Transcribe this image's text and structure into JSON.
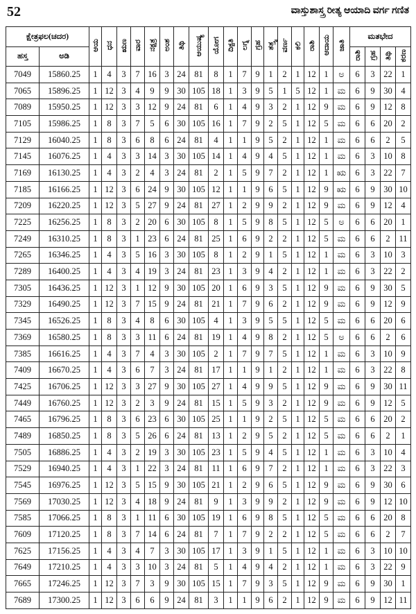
{
  "header": {
    "page_number": "52",
    "title": "ವಾಸ್ತುಶಾಸ್ತ್ರ ರೀತ್ಯ ಆಯಾದಿ ವರ್ಗ ಗಣಿತ"
  },
  "table": {
    "group_header": "ಕ್ಷೇತ್ರಫಲ(ಚದರ)",
    "group_columns": [
      "ಹಸ್ತ",
      "ಅಡಿ"
    ],
    "columns": [
      "ಆಯ",
      "ಧನ",
      "ಋಣ",
      "ವಾರ",
      "ನಕ್ಷತ್ರ",
      "ಅಂಶ",
      "ತಿಥಿ",
      "ಆಯುಷ್ಯ",
      "ಯೋಗ",
      "ದಿಕ್ಪತಿ",
      "ಲಗ್ನ",
      "ಗ್ರಹ",
      "ತತ್ತ್ವ",
      "ವರ್ಣ",
      "ಕಲಿ",
      "ರಾಶಿ",
      "ಆದಾಯ",
      "ಜಾತಿ"
    ],
    "variant_header": "ಮತಭೇದ",
    "variant_columns": [
      "ರಾಶಿ",
      "ಗ್ರಹ",
      "ತಿಥಿ",
      "ಕರಣ"
    ],
    "rows": [
      [
        7049,
        15860.25,
        1,
        4,
        3,
        7,
        16,
        3,
        24,
        81,
        8,
        1,
        7,
        9,
        1,
        2,
        1,
        12,
        1,
        "ಅ",
        6,
        3,
        22,
        1
      ],
      [
        7065,
        15896.25,
        1,
        12,
        3,
        4,
        9,
        9,
        30,
        105,
        18,
        1,
        3,
        9,
        5,
        1,
        5,
        12,
        1,
        "ಮ",
        6,
        9,
        30,
        4
      ],
      [
        7089,
        15950.25,
        1,
        12,
        3,
        3,
        12,
        9,
        24,
        81,
        6,
        1,
        4,
        9,
        3,
        2,
        1,
        12,
        9,
        "ಮ",
        6,
        9,
        12,
        8
      ],
      [
        7105,
        15986.25,
        1,
        8,
        3,
        7,
        5,
        6,
        30,
        105,
        16,
        1,
        7,
        9,
        2,
        5,
        1,
        12,
        5,
        "ಮ",
        6,
        6,
        20,
        2
      ],
      [
        7129,
        16040.25,
        1,
        8,
        3,
        6,
        8,
        6,
        24,
        81,
        4,
        1,
        1,
        9,
        5,
        2,
        1,
        12,
        1,
        "ಮ",
        6,
        6,
        2,
        5
      ],
      [
        7145,
        16076.25,
        1,
        4,
        3,
        3,
        14,
        3,
        30,
        105,
        14,
        1,
        4,
        9,
        4,
        5,
        1,
        12,
        1,
        "ಮ",
        6,
        3,
        10,
        8
      ],
      [
        7169,
        16130.25,
        1,
        4,
        3,
        2,
        4,
        3,
        24,
        81,
        2,
        1,
        5,
        9,
        7,
        2,
        1,
        12,
        1,
        "ಋ",
        6,
        3,
        22,
        7
      ],
      [
        7185,
        16166.25,
        1,
        12,
        3,
        6,
        24,
        9,
        30,
        105,
        12,
        1,
        1,
        9,
        6,
        5,
        1,
        12,
        9,
        "ಋ",
        6,
        9,
        30,
        10
      ],
      [
        7209,
        16220.25,
        1,
        12,
        3,
        5,
        27,
        9,
        24,
        81,
        27,
        1,
        2,
        9,
        9,
        2,
        1,
        12,
        9,
        "ಮ",
        6,
        9,
        12,
        4
      ],
      [
        7225,
        16256.25,
        1,
        8,
        3,
        2,
        20,
        6,
        30,
        105,
        8,
        1,
        5,
        9,
        8,
        5,
        1,
        12,
        5,
        "ಅ",
        6,
        6,
        20,
        1
      ],
      [
        7249,
        16310.25,
        1,
        8,
        3,
        1,
        23,
        6,
        24,
        81,
        25,
        1,
        6,
        9,
        2,
        2,
        1,
        12,
        5,
        "ಮ",
        6,
        6,
        2,
        11
      ],
      [
        7265,
        16346.25,
        1,
        4,
        3,
        5,
        16,
        3,
        30,
        105,
        8,
        1,
        2,
        9,
        1,
        5,
        1,
        12,
        1,
        "ಮ",
        6,
        3,
        10,
        3
      ],
      [
        7289,
        16400.25,
        1,
        4,
        3,
        4,
        19,
        3,
        24,
        81,
        23,
        1,
        3,
        9,
        4,
        2,
        1,
        12,
        1,
        "ಮ",
        6,
        3,
        22,
        2
      ],
      [
        7305,
        16436.25,
        1,
        12,
        3,
        1,
        12,
        9,
        30,
        105,
        20,
        1,
        6,
        9,
        3,
        5,
        1,
        12,
        9,
        "ಮ",
        6,
        9,
        30,
        5
      ],
      [
        7329,
        16490.25,
        1,
        12,
        3,
        7,
        15,
        9,
        24,
        81,
        21,
        1,
        7,
        9,
        6,
        2,
        1,
        12,
        9,
        "ಮ",
        6,
        9,
        12,
        9
      ],
      [
        7345,
        16526.25,
        1,
        8,
        3,
        4,
        8,
        6,
        30,
        105,
        4,
        1,
        3,
        9,
        5,
        5,
        1,
        12,
        5,
        "ಮ",
        6,
        6,
        20,
        6
      ],
      [
        7369,
        16580.25,
        1,
        8,
        3,
        3,
        11,
        6,
        24,
        81,
        19,
        1,
        4,
        9,
        8,
        2,
        1,
        12,
        5,
        "ಅ",
        6,
        6,
        2,
        6
      ],
      [
        7385,
        16616.25,
        1,
        4,
        3,
        7,
        4,
        3,
        30,
        105,
        2,
        1,
        7,
        9,
        7,
        5,
        1,
        12,
        1,
        "ಮ",
        6,
        3,
        10,
        9
      ],
      [
        7409,
        16670.25,
        1,
        4,
        3,
        6,
        7,
        3,
        24,
        81,
        17,
        1,
        1,
        9,
        1,
        2,
        1,
        12,
        1,
        "ಮ",
        6,
        3,
        22,
        8
      ],
      [
        7425,
        16706.25,
        1,
        12,
        3,
        3,
        27,
        9,
        30,
        105,
        27,
        1,
        4,
        9,
        9,
        5,
        1,
        12,
        9,
        "ಮ",
        6,
        9,
        30,
        11
      ],
      [
        7449,
        16760.25,
        1,
        12,
        3,
        2,
        3,
        9,
        24,
        81,
        15,
        1,
        5,
        9,
        3,
        2,
        1,
        12,
        9,
        "ಮ",
        6,
        9,
        12,
        5
      ],
      [
        7465,
        16796.25,
        1,
        8,
        3,
        6,
        23,
        6,
        30,
        105,
        25,
        1,
        1,
        9,
        2,
        5,
        1,
        12,
        5,
        "ಮ",
        6,
        6,
        20,
        2
      ],
      [
        7489,
        16850.25,
        1,
        8,
        3,
        5,
        26,
        6,
        24,
        81,
        13,
        1,
        2,
        9,
        5,
        2,
        1,
        12,
        5,
        "ಮ",
        6,
        6,
        2,
        1
      ],
      [
        7505,
        16886.25,
        1,
        4,
        3,
        2,
        19,
        3,
        30,
        105,
        23,
        1,
        5,
        9,
        4,
        5,
        1,
        12,
        1,
        "ಮ",
        6,
        3,
        10,
        4
      ],
      [
        7529,
        16940.25,
        1,
        4,
        3,
        1,
        22,
        3,
        24,
        81,
        11,
        1,
        6,
        9,
        7,
        2,
        1,
        12,
        1,
        "ಮ",
        6,
        3,
        22,
        3
      ],
      [
        7545,
        16976.25,
        1,
        12,
        3,
        5,
        15,
        9,
        30,
        105,
        21,
        1,
        2,
        9,
        6,
        5,
        1,
        12,
        9,
        "ಮ",
        6,
        9,
        30,
        6
      ],
      [
        7569,
        17030.25,
        1,
        12,
        3,
        4,
        18,
        9,
        24,
        81,
        9,
        1,
        3,
        9,
        9,
        2,
        1,
        12,
        9,
        "ಮ",
        6,
        9,
        12,
        10
      ],
      [
        7585,
        17066.25,
        1,
        8,
        3,
        1,
        11,
        6,
        30,
        105,
        19,
        1,
        6,
        9,
        8,
        5,
        1,
        12,
        5,
        "ಮ",
        6,
        6,
        20,
        8
      ],
      [
        7609,
        17120.25,
        1,
        8,
        3,
        7,
        14,
        6,
        24,
        81,
        7,
        1,
        7,
        9,
        2,
        2,
        1,
        12,
        5,
        "ಮ",
        6,
        6,
        2,
        7
      ],
      [
        7625,
        17156.25,
        1,
        4,
        3,
        4,
        7,
        3,
        30,
        105,
        17,
        1,
        3,
        9,
        1,
        5,
        1,
        12,
        1,
        "ಮ",
        6,
        3,
        10,
        10
      ],
      [
        7649,
        17210.25,
        1,
        4,
        3,
        3,
        10,
        3,
        24,
        81,
        5,
        1,
        4,
        9,
        4,
        2,
        1,
        12,
        1,
        "ಮ",
        6,
        3,
        22,
        9
      ],
      [
        7665,
        17246.25,
        1,
        12,
        3,
        7,
        3,
        9,
        30,
        105,
        15,
        1,
        7,
        9,
        3,
        5,
        1,
        12,
        9,
        "ಮ",
        6,
        9,
        30,
        1
      ],
      [
        7689,
        17300.25,
        1,
        12,
        3,
        6,
        6,
        9,
        24,
        81,
        3,
        1,
        1,
        9,
        6,
        2,
        1,
        12,
        9,
        "ಮ",
        6,
        9,
        12,
        11
      ]
    ]
  }
}
